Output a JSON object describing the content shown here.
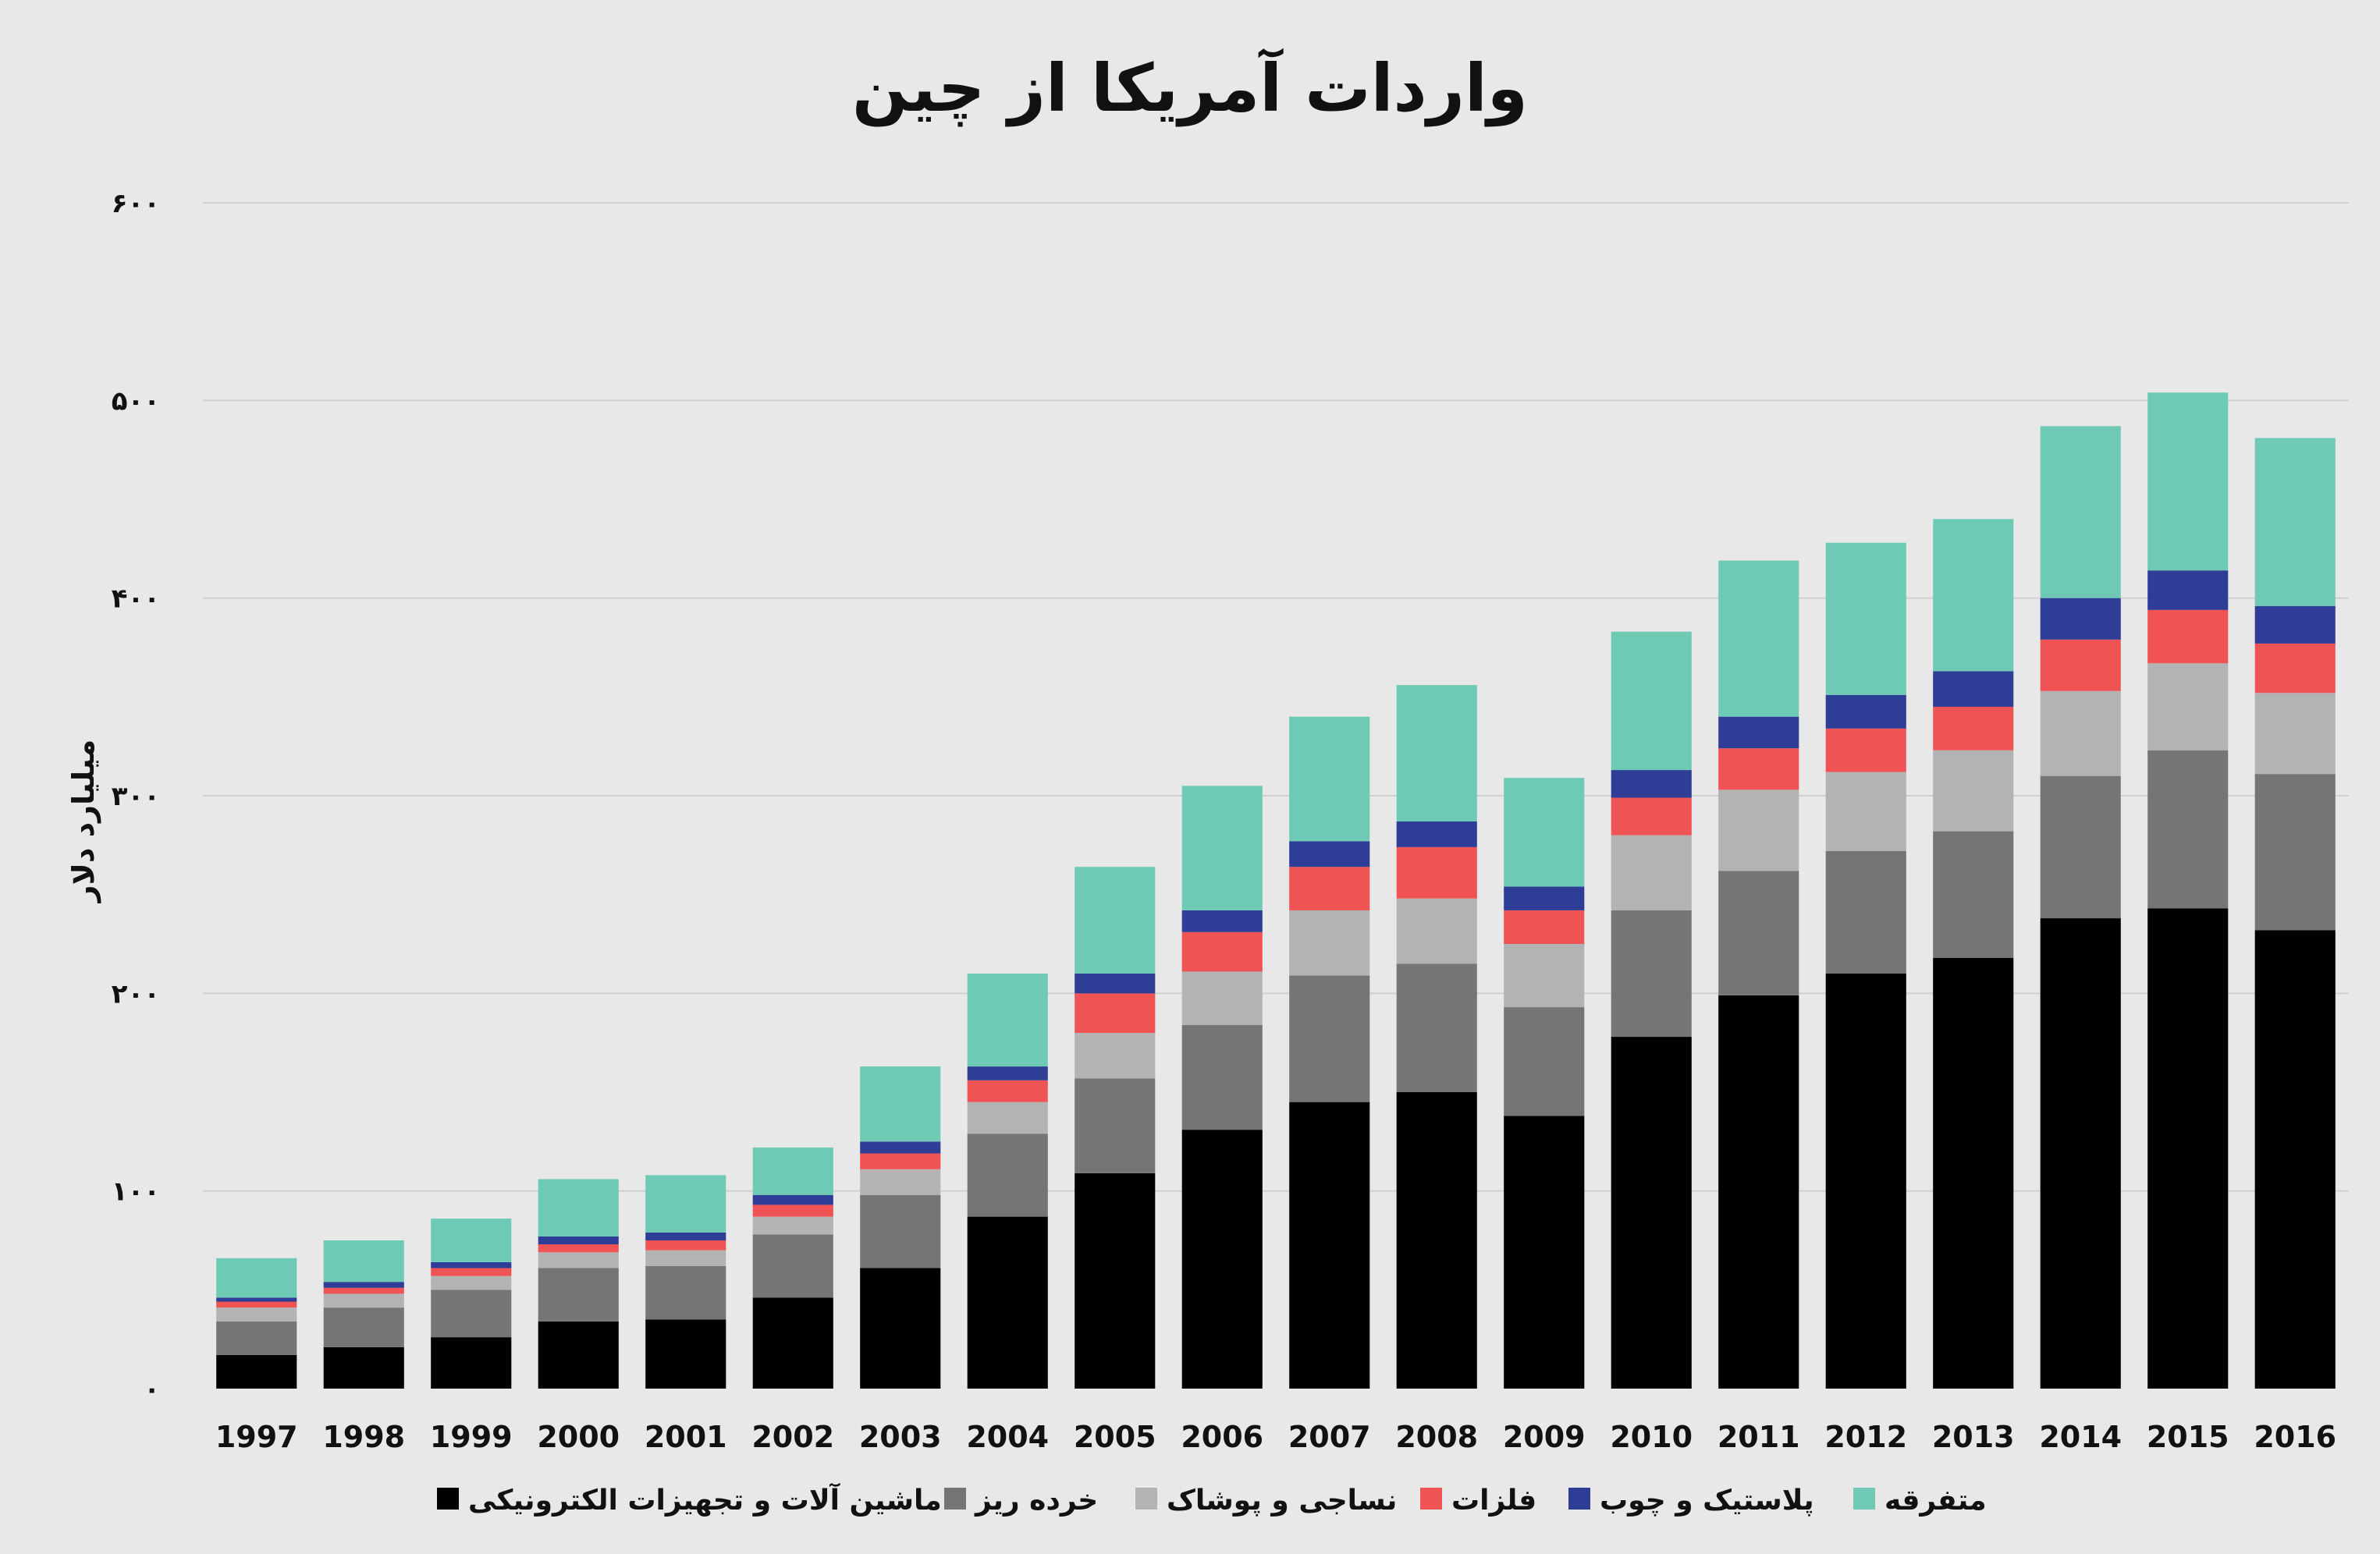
{
  "chart_data": {
    "type": "bar",
    "stacked": true,
    "title": "واردات آمریکا از چین",
    "ylabel": "میلیارد دلار",
    "xlabel": "",
    "ylim": [
      0,
      600
    ],
    "yticks": [
      0,
      100,
      200,
      300,
      400,
      500,
      600
    ],
    "ytick_labels": [
      "۰",
      "۱۰۰",
      "۲۰۰",
      "۳۰۰",
      "۴۰۰",
      "۵۰۰",
      "۶۰۰"
    ],
    "grid": true,
    "legend_position": "bottom",
    "categories": [
      "1997",
      "1998",
      "1999",
      "2000",
      "2001",
      "2002",
      "2003",
      "2004",
      "2005",
      "2006",
      "2007",
      "2008",
      "2009",
      "2010",
      "2011",
      "2012",
      "2013",
      "2014",
      "2015",
      "2016"
    ],
    "series": [
      {
        "name": "ماشین آلات و تجهیزات الکترونیکی",
        "color": "#000000",
        "values": [
          17,
          21,
          26,
          34,
          35,
          46,
          61,
          87,
          109,
          131,
          145,
          150,
          138,
          178,
          199,
          210,
          218,
          238,
          243,
          232
        ]
      },
      {
        "name": "خرده ریز",
        "color": "#767474",
        "values": [
          17,
          20,
          24,
          27,
          27,
          32,
          37,
          42,
          48,
          53,
          64,
          65,
          55,
          64,
          63,
          62,
          64,
          72,
          80,
          79
        ]
      },
      {
        "name": "نساجی و پوشاک",
        "color": "#b3b3b3",
        "values": [
          7,
          7,
          7,
          8,
          8,
          9,
          13,
          16,
          23,
          27,
          33,
          33,
          32,
          38,
          41,
          40,
          41,
          43,
          44,
          41
        ]
      },
      {
        "name": "فلزات",
        "color": "#ef5354",
        "values": [
          3,
          3,
          4,
          4,
          5,
          6,
          8,
          11,
          20,
          20,
          22,
          26,
          17,
          19,
          21,
          22,
          22,
          26,
          27,
          25
        ]
      },
      {
        "name": "پلاستیک و چوب",
        "color": "#2e3d96",
        "values": [
          2,
          3,
          3,
          4,
          4,
          5,
          6,
          7,
          10,
          11,
          13,
          13,
          12,
          14,
          16,
          17,
          18,
          21,
          20,
          19
        ]
      },
      {
        "name": "متفرقه",
        "color": "#6ecab5",
        "values": [
          20,
          21,
          22,
          29,
          29,
          24,
          38,
          47,
          54,
          63,
          63,
          69,
          55,
          70,
          79,
          77,
          77,
          87,
          90,
          85
        ]
      }
    ]
  }
}
